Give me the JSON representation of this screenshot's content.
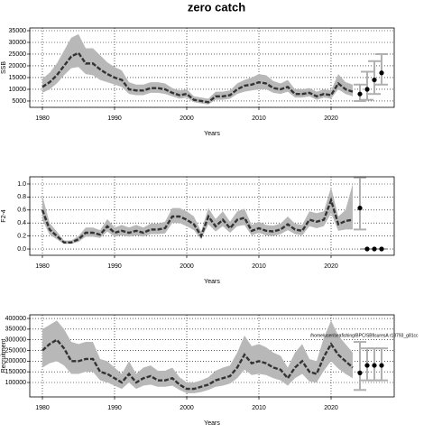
{
  "title": "zero catch",
  "chart_data": [
    {
      "type": "line",
      "y_label": "SSB",
      "x_label": "Years",
      "xlim": [
        1978.25,
        2028.75
      ],
      "xticks": [
        1980,
        1990,
        2000,
        2010,
        2020
      ],
      "ylim": [
        2300,
        36150
      ],
      "yticks": [
        5000,
        10000,
        15000,
        20000,
        25000,
        30000,
        35000
      ],
      "grid": true,
      "line_color": "#333333",
      "band_color": "#b8b8b8",
      "errbar_color": "#b0b0b0",
      "point_color": "#000000",
      "x": [
        1980,
        1981,
        1982,
        1983,
        1984,
        1985,
        1986,
        1987,
        1988,
        1989,
        1990,
        1991,
        1992,
        1993,
        1994,
        1995,
        1996,
        1997,
        1998,
        1999,
        2000,
        2001,
        2002,
        2003,
        2004,
        2005,
        2006,
        2007,
        2008,
        2009,
        2010,
        2011,
        2012,
        2013,
        2014,
        2015,
        2016,
        2017,
        2018,
        2019,
        2020,
        2021,
        2022,
        2023
      ],
      "values": [
        11000,
        13000,
        16000,
        20000,
        24000,
        25500,
        21000,
        21000,
        18500,
        16500,
        15000,
        14000,
        10000,
        9500,
        9500,
        10500,
        10500,
        10000,
        8500,
        7500,
        8000,
        5500,
        5000,
        4500,
        7000,
        7000,
        7500,
        10000,
        11500,
        12000,
        13000,
        12500,
        10500,
        10000,
        11000,
        8000,
        8000,
        8500,
        7000,
        8000,
        7500,
        12500,
        10000,
        9000
      ],
      "lower": [
        8500,
        10000,
        12500,
        16000,
        19000,
        19500,
        16500,
        16000,
        14000,
        13000,
        12000,
        11000,
        8000,
        7500,
        7500,
        8500,
        8500,
        8000,
        7000,
        6000,
        6500,
        4500,
        4000,
        3500,
        5500,
        5500,
        6000,
        8000,
        9000,
        9500,
        10000,
        10000,
        8500,
        8000,
        9000,
        6500,
        6500,
        7000,
        5500,
        6500,
        6000,
        10000,
        8000,
        7000
      ],
      "upper": [
        14500,
        17000,
        21000,
        26500,
        32000,
        33500,
        27500,
        27500,
        24500,
        21500,
        19500,
        18000,
        13000,
        12000,
        12000,
        13000,
        13000,
        12500,
        10500,
        9500,
        10000,
        7000,
        6500,
        6000,
        9000,
        9000,
        9500,
        12500,
        14000,
        15000,
        16500,
        16000,
        13500,
        12500,
        14000,
        10000,
        10000,
        10500,
        9000,
        10000,
        9500,
        16500,
        13000,
        12000
      ],
      "proj_x": [
        2024,
        2025,
        2026,
        2027
      ],
      "proj_values": [
        8000,
        10000,
        14000,
        17000
      ],
      "proj_lower": [
        5000,
        5500,
        8000,
        12000
      ],
      "proj_upper": [
        12000,
        17500,
        22000,
        25000
      ]
    },
    {
      "type": "line",
      "y_label": "F2-4",
      "x_label": "Years",
      "xlim": [
        1978.25,
        2028.75
      ],
      "xticks": [
        1980,
        1990,
        2000,
        2010,
        2020
      ],
      "ylim": [
        -0.097,
        1.111
      ],
      "yticks": [
        {
          "value": 0,
          "label": "0.0"
        },
        0.2,
        0.4,
        0.6,
        0.8,
        {
          "value": 1,
          "label": "1.0"
        }
      ],
      "grid": true,
      "line_color": "#333333",
      "band_color": "#b8b8b8",
      "errbar_color": "#b0b0b0",
      "point_color": "#000000",
      "x": [
        1980,
        1981,
        1982,
        1983,
        1984,
        1985,
        1986,
        1987,
        1988,
        1989,
        1990,
        1991,
        1992,
        1993,
        1994,
        1995,
        1996,
        1997,
        1998,
        1999,
        2000,
        2001,
        2002,
        2003,
        2004,
        2005,
        2006,
        2007,
        2008,
        2009,
        2010,
        2011,
        2012,
        2013,
        2014,
        2015,
        2016,
        2017,
        2018,
        2019,
        2020,
        2021,
        2022,
        2023
      ],
      "values": [
        0.6,
        0.3,
        0.2,
        0.1,
        0.1,
        0.15,
        0.25,
        0.25,
        0.22,
        0.35,
        0.25,
        0.28,
        0.25,
        0.28,
        0.25,
        0.3,
        0.3,
        0.32,
        0.5,
        0.5,
        0.45,
        0.38,
        0.2,
        0.5,
        0.35,
        0.45,
        0.32,
        0.45,
        0.48,
        0.28,
        0.32,
        0.28,
        0.27,
        0.3,
        0.38,
        0.3,
        0.28,
        0.45,
        0.42,
        0.45,
        0.75,
        0.38,
        0.43,
        0.45
      ],
      "lower": [
        0.45,
        0.22,
        0.15,
        0.08,
        0.08,
        0.11,
        0.19,
        0.19,
        0.17,
        0.27,
        0.19,
        0.21,
        0.19,
        0.21,
        0.19,
        0.23,
        0.23,
        0.24,
        0.4,
        0.4,
        0.35,
        0.29,
        0.15,
        0.38,
        0.27,
        0.35,
        0.25,
        0.35,
        0.37,
        0.21,
        0.25,
        0.21,
        0.2,
        0.23,
        0.29,
        0.23,
        0.21,
        0.35,
        0.32,
        0.35,
        0.55,
        0.28,
        0.3,
        0.3
      ],
      "upper": [
        0.82,
        0.4,
        0.27,
        0.13,
        0.13,
        0.2,
        0.33,
        0.33,
        0.29,
        0.46,
        0.33,
        0.37,
        0.33,
        0.37,
        0.33,
        0.39,
        0.39,
        0.42,
        0.63,
        0.63,
        0.58,
        0.5,
        0.27,
        0.63,
        0.46,
        0.58,
        0.42,
        0.58,
        0.62,
        0.37,
        0.42,
        0.37,
        0.36,
        0.39,
        0.5,
        0.39,
        0.37,
        0.58,
        0.55,
        0.58,
        0.95,
        0.5,
        0.6,
        1.0
      ],
      "proj_x": [
        2024,
        2025,
        2026,
        2027
      ],
      "proj_values": [
        0.63,
        0,
        0,
        0
      ],
      "proj_lower": [
        0.3,
        0,
        0,
        0
      ],
      "proj_upper": [
        1.1,
        0,
        0,
        0
      ]
    },
    {
      "type": "line",
      "y_label": "Recruitment",
      "x_label": "Years",
      "annotation": "/home/user/seafishing/BPC/SBfisuresA r18793_g81cc",
      "xlim": [
        1978.25,
        2028.75
      ],
      "xticks": [
        1980,
        1990,
        2000,
        2010,
        2020
      ],
      "ylim": [
        32400,
        417000
      ],
      "yticks": [
        100000,
        150000,
        200000,
        250000,
        300000,
        350000,
        400000
      ],
      "grid": true,
      "line_color": "#333333",
      "band_color": "#b8b8b8",
      "errbar_color": "#b0b0b0",
      "point_color": "#000000",
      "x": [
        1980,
        1981,
        1982,
        1983,
        1984,
        1985,
        1986,
        1987,
        1988,
        1989,
        1990,
        1991,
        1992,
        1993,
        1994,
        1995,
        1996,
        1997,
        1998,
        1999,
        2000,
        2001,
        2002,
        2003,
        2004,
        2005,
        2006,
        2007,
        2008,
        2009,
        2010,
        2011,
        2012,
        2013,
        2014,
        2015,
        2016,
        2017,
        2018,
        2019,
        2020,
        2021,
        2022,
        2023
      ],
      "values": [
        250000,
        280000,
        300000,
        260000,
        200000,
        200000,
        210000,
        210000,
        150000,
        140000,
        120000,
        100000,
        140000,
        100000,
        120000,
        130000,
        110000,
        110000,
        120000,
        90000,
        70000,
        70000,
        80000,
        90000,
        110000,
        120000,
        130000,
        170000,
        230000,
        190000,
        200000,
        190000,
        170000,
        160000,
        120000,
        170000,
        200000,
        150000,
        140000,
        220000,
        280000,
        230000,
        200000,
        170000
      ],
      "lower": [
        170000,
        190000,
        200000,
        180000,
        140000,
        140000,
        150000,
        150000,
        110000,
        100000,
        85000,
        70000,
        100000,
        70000,
        85000,
        90000,
        80000,
        80000,
        85000,
        65000,
        50000,
        50000,
        55000,
        65000,
        80000,
        85000,
        95000,
        120000,
        160000,
        135000,
        140000,
        135000,
        120000,
        110000,
        85000,
        120000,
        140000,
        105000,
        100000,
        155000,
        200000,
        165000,
        140000,
        120000
      ],
      "upper": [
        350000,
        370000,
        390000,
        350000,
        290000,
        280000,
        290000,
        290000,
        210000,
        200000,
        170000,
        140000,
        200000,
        140000,
        170000,
        180000,
        155000,
        155000,
        170000,
        125000,
        100000,
        100000,
        110000,
        125000,
        155000,
        170000,
        180000,
        240000,
        320000,
        270000,
        280000,
        265000,
        240000,
        225000,
        170000,
        240000,
        280000,
        210000,
        200000,
        310000,
        390000,
        320000,
        280000,
        240000
      ],
      "proj_x": [
        2024,
        2025,
        2026,
        2027
      ],
      "proj_values": [
        145000,
        180000,
        180000,
        180000
      ],
      "proj_lower": [
        65000,
        110000,
        110000,
        110000
      ],
      "proj_upper": [
        290000,
        260000,
        260000,
        260000
      ]
    }
  ]
}
